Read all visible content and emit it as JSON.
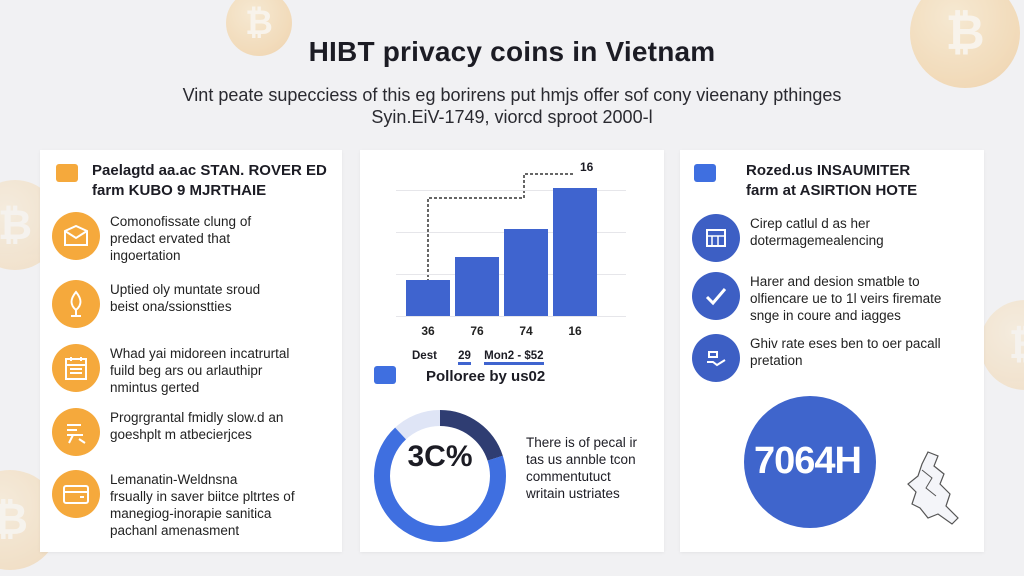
{
  "header": {
    "title": "HIBT privacy coins in Vietnam",
    "subtitle_line1": "Vint peate supecciess of this eg borirens put hmjs offer sof cony vieenany pthinges",
    "subtitle_line2": "Syin.EiV-1749, viorcd sproot 2000-l"
  },
  "background": {
    "coin_symbol": "₿",
    "coin_color": "#f2c88a"
  },
  "colors": {
    "accent_orange": "#f5a93c",
    "accent_blue": "#3f64cf",
    "panel_bg": "#ffffff"
  },
  "left_panel": {
    "heading_line1": "Paelagtd aa.ac STAN. ROVER ED",
    "heading_line2": "farm KUBO 9 MJRTHAIE",
    "items": [
      {
        "icon": "document-icon",
        "line1": "Comonofissate clung of",
        "line2": "predact ervated that",
        "line3": "ingoertation"
      },
      {
        "icon": "pen-icon",
        "line1": "Uptied oly muntate sroud",
        "line2": "beist ona/ssionstties",
        "line3": ""
      },
      {
        "icon": "calendar-icon",
        "line1": "Whad yai midoreen incatrurtal",
        "line2": "fuild beg ars ou arlauthipr",
        "line3": "nmintus gerted"
      },
      {
        "icon": "coins-icon",
        "line1": "Progrgrantal fmidly slow.d an",
        "line2": "goeshplt m atbecierjces",
        "line3": ""
      },
      {
        "icon": "wallet-icon",
        "line1": "Lemanatin-Weldnsna",
        "line2": "frsually in saver biitce pltrtes of",
        "line3": "manegiog-inorapie sanitica",
        "line4": "pachanl amenasment"
      }
    ]
  },
  "middle_panel": {
    "callout_label": "16",
    "legend_labels": [
      "Dest",
      "29",
      "Mon2 - $52"
    ],
    "donut_heading": "Polloree by us02",
    "donut_value": "3C%",
    "donut_text_line1": "There is of pecal ir",
    "donut_text_line2": "tas us annble tcon",
    "donut_text_line3": "commentutuct",
    "donut_text_line4": "writain ustriates"
  },
  "chart_data": {
    "type": "bar",
    "categories": [
      "36",
      "76",
      "74",
      "16"
    ],
    "values": [
      28,
      46,
      68,
      100
    ],
    "title": "",
    "xlabel": "",
    "ylabel": "",
    "grid": true,
    "bar_color": "#3f64cf"
  },
  "donut_data": {
    "filled_fraction": 0.88,
    "dark_fraction": 0.2,
    "fill_color": "#3f6fe0",
    "dark_color": "#2f3d72",
    "track_color": "#dfe5f6"
  },
  "right_panel": {
    "heading_line1": "Rozed.us INSAUMITER",
    "heading_line2": "farm at ASIRTION HOTE",
    "items": [
      {
        "icon": "calculator-icon",
        "line1": "Cirep catlul d as her",
        "line2": "dotermagemealencing",
        "line3": ""
      },
      {
        "icon": "checkmark-icon",
        "line1": "Harer and desion smatble to",
        "line2": "olfiencare ue to 1l veirs firemate",
        "line3": "snge in coure and iagges"
      },
      {
        "icon": "hand-coin-icon",
        "line1": "Ghiv rate eses ben to oer pacall",
        "line2": "pretation",
        "line3": ""
      }
    ],
    "big_value": "7064H"
  }
}
